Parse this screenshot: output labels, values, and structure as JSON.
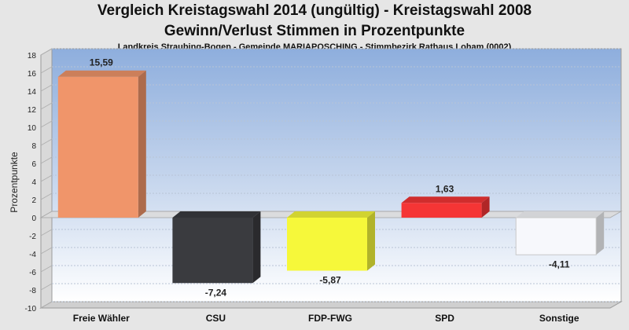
{
  "header": {
    "title_line1": "Vergleich Kreistagswahl 2014 (ungültig) - Kreistagswahl 2008",
    "title_line2": "Gewinn/Verlust Stimmen in Prozentpunkte",
    "subtitle": "Landkreis Straubing-Bogen - Gemeinde MARIAPOSCHING - Stimmbezirk Rathaus Loham (0002)"
  },
  "chart_data": {
    "type": "bar",
    "title": "Vergleich Kreistagswahl 2014 (ungültig) - Kreistagswahl 2008",
    "subtitle": "Gewinn/Verlust Stimmen in Prozentpunkte",
    "ylabel": "Prozentpunkte",
    "xlabel": "",
    "ylim": [
      -10,
      18
    ],
    "yticks": [
      -10,
      -8,
      -6,
      -4,
      -2,
      0,
      2,
      4,
      6,
      8,
      10,
      12,
      14,
      16,
      18
    ],
    "grid": true,
    "categories": [
      "Freie Wähler",
      "CSU",
      "FDP-FWG",
      "SPD",
      "Sonstige"
    ],
    "values": [
      15.59,
      -7.24,
      -5.87,
      1.63,
      -4.11
    ],
    "value_labels": [
      "15,59",
      "-7,24",
      "-5,87",
      "1,63",
      "-4,11"
    ],
    "colors": [
      "#f0956a",
      "#3a3b3f",
      "#f6f83a",
      "#f53535",
      "#f7f8fc"
    ]
  }
}
